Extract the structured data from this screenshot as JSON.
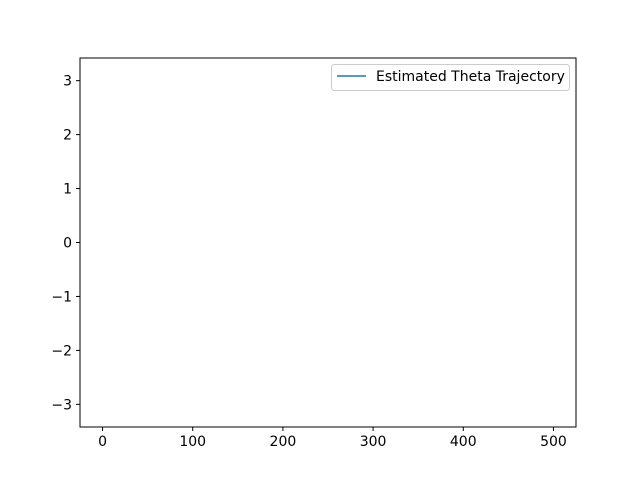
{
  "chart_data": {
    "type": "line",
    "title": "",
    "xlabel": "",
    "ylabel": "",
    "xlim": [
      -25,
      525
    ],
    "ylim": [
      -3.42,
      3.42
    ],
    "xticks": [
      0,
      100,
      200,
      300,
      400,
      500
    ],
    "xtick_labels": [
      "0",
      "100",
      "200",
      "300",
      "400",
      "500"
    ],
    "yticks": [
      3,
      2,
      1,
      0,
      -1,
      -2,
      -3
    ],
    "ytick_labels": [
      "3",
      "2",
      "1",
      "0",
      "−1",
      "−2",
      "−3"
    ],
    "grid": false,
    "legend_position": "upper right",
    "series": [
      {
        "name": "Estimated Theta Trajectory",
        "color": "#1f77b4",
        "x": [],
        "y": []
      }
    ]
  }
}
